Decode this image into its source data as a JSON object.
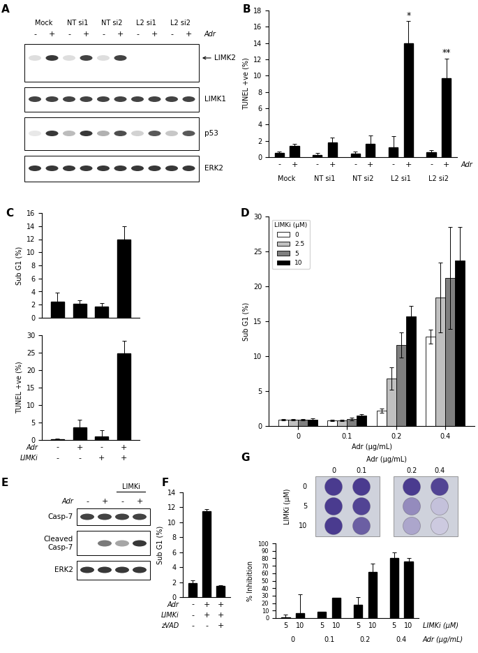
{
  "chart_data": [
    {
      "panel": "B",
      "type": "bar",
      "y_label": "TUNEL +ve (%)",
      "ylim": [
        0,
        18
      ],
      "yticks": [
        0,
        2,
        4,
        6,
        8,
        10,
        12,
        14,
        16,
        18
      ],
      "color": "#000000",
      "values": [
        0.5,
        1.4,
        0.3,
        1.8,
        0.4,
        1.6,
        1.2,
        14.0,
        0.6,
        9.7
      ],
      "errors": [
        0.2,
        0.2,
        0.2,
        0.6,
        0.3,
        1.1,
        1.4,
        2.7,
        0.3,
        2.4
      ],
      "x_rows": [
        {
          "label": "Adr",
          "values": [
            "-",
            "+",
            "-",
            "+",
            "-",
            "+",
            "-",
            "+",
            "-",
            "+"
          ]
        }
      ],
      "groups": [
        "Mock",
        "NT si1",
        "NT si2",
        "L2 si1",
        "L2 si2"
      ],
      "annotations": [
        {
          "text": "*",
          "index": 7
        },
        {
          "text": "**",
          "index": 9
        }
      ]
    },
    {
      "panel": "C",
      "type": "bar",
      "y_label": "Sub G1 (%)",
      "ylim": [
        0,
        16
      ],
      "yticks": [
        0,
        2,
        4,
        6,
        8,
        10,
        12,
        14,
        16
      ],
      "color": "#000000",
      "values": [
        2.5,
        2.1,
        1.7,
        11.9
      ],
      "errors": [
        1.3,
        0.6,
        0.5,
        2.1
      ]
    },
    {
      "type": "bar",
      "y_label": "TUNEL +ve (%)",
      "ylim": [
        0,
        30
      ],
      "yticks": [
        0,
        5,
        10,
        15,
        20,
        25,
        30
      ],
      "color": "#000000",
      "values": [
        0.3,
        3.6,
        1.1,
        24.8
      ],
      "errors": [
        0.1,
        2.2,
        1.8,
        3.6
      ],
      "x_rows": [
        {
          "label": "Adr",
          "values": [
            "-",
            "+",
            "-",
            "+"
          ]
        },
        {
          "label": "LIMKi",
          "values": [
            "-",
            "-",
            "+",
            "+"
          ]
        }
      ]
    },
    {
      "panel": "D",
      "type": "bar",
      "y_label": "Sub G1 (%)",
      "x_label": "Adr (µg/mL)",
      "categories": [
        "0",
        "0.1",
        "0.2",
        "0.4"
      ],
      "ylim": [
        0,
        30
      ],
      "yticks": [
        0,
        5,
        10,
        15,
        20,
        25,
        30
      ],
      "legend": "upper left",
      "legend_title": "LIMKi (µM)",
      "series": [
        {
          "name": "0",
          "color": "#ffffff",
          "values": [
            0.9,
            0.8,
            2.2,
            12.8
          ],
          "errors": [
            0.1,
            0.1,
            0.3,
            1.0
          ]
        },
        {
          "name": "2.5",
          "color": "#c0c0c0",
          "values": [
            0.9,
            0.8,
            6.8,
            18.4
          ],
          "errors": [
            0.1,
            0.1,
            1.6,
            5.0
          ]
        },
        {
          "name": "5",
          "color": "#7f7f7f",
          "values": [
            0.9,
            1.0,
            11.6,
            21.2
          ],
          "errors": [
            0.1,
            0.2,
            1.8,
            7.3
          ]
        },
        {
          "name": "10",
          "color": "#000000",
          "values": [
            0.9,
            1.5,
            15.7,
            23.7
          ],
          "errors": [
            0.2,
            0.2,
            1.5,
            4.8
          ]
        }
      ]
    },
    {
      "panel": "F",
      "type": "bar",
      "y_label": "Sub G1 (%)",
      "ylim": [
        0,
        14
      ],
      "yticks": [
        0,
        2,
        4,
        6,
        8,
        10,
        12,
        14
      ],
      "color": "#000000",
      "values": [
        1.9,
        11.5,
        1.5
      ],
      "errors": [
        0.3,
        0.3,
        0.1
      ],
      "x_rows": [
        {
          "label": "Adr",
          "values": [
            "-",
            "+",
            "+"
          ]
        },
        {
          "label": "LIMKi",
          "values": [
            "-",
            "+",
            "+"
          ]
        },
        {
          "label": "zVAD",
          "values": [
            "-",
            "-",
            "+"
          ]
        }
      ]
    },
    {
      "type": "bar",
      "y_label": "% Inhibition",
      "ylim": [
        0,
        100
      ],
      "yticks": [
        0,
        10,
        20,
        30,
        40,
        50,
        60,
        70,
        80,
        90,
        100
      ],
      "color": "#000000",
      "values": [
        0.5,
        7,
        8,
        27,
        18,
        62,
        80,
        76
      ],
      "errors": [
        4,
        25,
        0,
        0,
        10,
        11,
        8,
        4
      ],
      "x_rows": [
        {
          "label": "LIMKi (µM)",
          "values": [
            "5",
            "10",
            "5",
            "10",
            "5",
            "10",
            "5",
            "10"
          ]
        }
      ],
      "groups": [
        "0",
        "0.1",
        "0.2",
        "0.4"
      ],
      "group_label": "Adr (µg/mL)"
    }
  ],
  "blots": [
    {
      "panel": "A",
      "groups": [
        "Mock",
        "NT si1",
        "NT si2",
        "L2 si1",
        "L2 si2"
      ],
      "treatment": {
        "label": "Adr",
        "values": [
          "-",
          "+",
          "-",
          "+",
          "-",
          "+",
          "-",
          "+",
          "-",
          "+"
        ]
      },
      "rows": [
        {
          "label": "LIMK2",
          "arrow": true
        },
        {
          "label": "LIMK1"
        },
        {
          "label": "p53"
        },
        {
          "label": "ERK2"
        }
      ]
    },
    {
      "panel": "E",
      "groups": [
        null,
        "LIMKi"
      ],
      "treatment": {
        "label": "Adr",
        "values": [
          "-",
          "+",
          "-",
          "+"
        ]
      },
      "rows": [
        {
          "label": "Casp-7"
        },
        {
          "label": "Cleaved\nCasp-7"
        },
        {
          "label": "ERK2"
        }
      ]
    }
  ],
  "plate": {
    "panel": "G",
    "title": "Adr (µg/mL)",
    "columns": [
      "0",
      "0.1",
      "0.2",
      "0.4"
    ],
    "row_title": "LIMKi (µM)",
    "rows": [
      "0",
      "5",
      "10"
    ]
  }
}
